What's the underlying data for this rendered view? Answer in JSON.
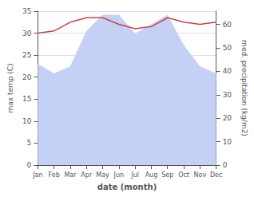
{
  "chart_data": {
    "type": "line",
    "categories": [
      "Jan",
      "Feb",
      "Mar",
      "Apr",
      "May",
      "Jun",
      "Jul",
      "Aug",
      "Sep",
      "Oct",
      "Nov",
      "Dec"
    ],
    "xlabel": "date (month)",
    "ylabel": "max temp (C)",
    "y2label": "med. precipitation (kg/m2)",
    "series": [
      {
        "type": "area",
        "axis": "y2",
        "color": "#c5d0f5",
        "values": [
          43,
          39,
          42,
          57,
          64,
          64,
          56,
          60,
          64,
          51,
          42,
          39
        ]
      },
      {
        "type": "line",
        "color": "#cc4444",
        "values": [
          30.0,
          30.5,
          32.5,
          33.5,
          33.5,
          32.0,
          31.0,
          31.5,
          33.5,
          32.5,
          32.0,
          32.5
        ]
      }
    ],
    "ylim": [
      0,
      35
    ],
    "yticks": [
      0,
      5,
      10,
      15,
      20,
      25,
      30,
      35
    ],
    "y2lim": [
      0,
      65.625
    ],
    "y2ticks": [
      0,
      10,
      20,
      30,
      40,
      50,
      60
    ],
    "grid": true
  }
}
